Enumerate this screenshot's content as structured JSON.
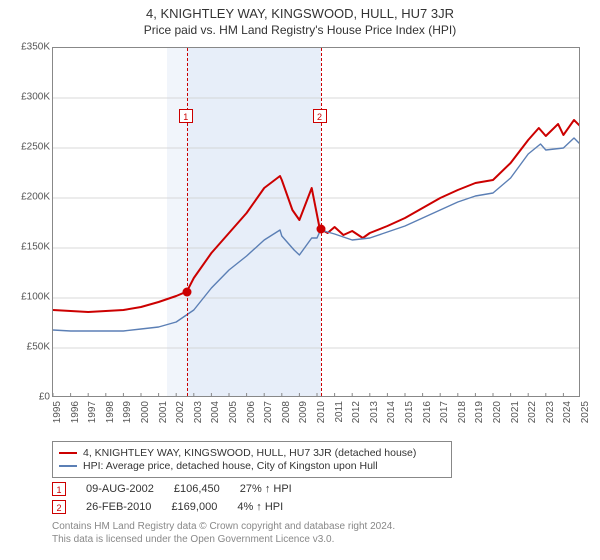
{
  "title_main": "4, KNIGHTLEY WAY, KINGSWOOD, HULL, HU7 3JR",
  "title_sub": "Price paid vs. HM Land Registry's House Price Index (HPI)",
  "chart": {
    "type": "line",
    "background_color": "#ffffff",
    "border_color": "#888888",
    "x": {
      "year_min": 1995,
      "year_max": 2025,
      "labels": [
        "1995",
        "1996",
        "1997",
        "1998",
        "1999",
        "2000",
        "2001",
        "2002",
        "2003",
        "2004",
        "2005",
        "2006",
        "2007",
        "2008",
        "2009",
        "2010",
        "2011",
        "2012",
        "2013",
        "2014",
        "2015",
        "2016",
        "2017",
        "2018",
        "2019",
        "2020",
        "2021",
        "2022",
        "2023",
        "2024",
        "2025"
      ]
    },
    "y": {
      "min": 0,
      "max": 350000,
      "step": 50000,
      "labels": [
        "£0",
        "£50K",
        "£100K",
        "£150K",
        "£200K",
        "£250K",
        "£300K",
        "£350K"
      ]
    },
    "shade_bands": [
      {
        "from_year": 2001.5,
        "to_year": 2002.6,
        "color": "#f1f5fb"
      },
      {
        "from_year": 2002.6,
        "to_year": 2010.2,
        "color": "#e7eef9"
      }
    ],
    "vlines": [
      {
        "year": 2002.6,
        "color": "#cc0000",
        "marker": "1"
      },
      {
        "year": 2010.2,
        "color": "#cc0000",
        "marker": "2"
      }
    ],
    "series": [
      {
        "name": "property_price",
        "color": "#cc0000",
        "width": 2,
        "legend": "4, KNIGHTLEY WAY, KINGSWOOD, HULL, HU7 3JR (detached house)",
        "points": [
          [
            1995,
            88000
          ],
          [
            1996,
            87000
          ],
          [
            1997,
            86000
          ],
          [
            1998,
            87000
          ],
          [
            1999,
            88000
          ],
          [
            2000,
            91000
          ],
          [
            2001,
            96000
          ],
          [
            2002,
            102000
          ],
          [
            2002.6,
            106450
          ],
          [
            2003,
            120000
          ],
          [
            2004,
            145000
          ],
          [
            2005,
            165000
          ],
          [
            2006,
            185000
          ],
          [
            2007,
            210000
          ],
          [
            2007.9,
            222000
          ],
          [
            2008,
            218000
          ],
          [
            2008.6,
            188000
          ],
          [
            2009,
            178000
          ],
          [
            2009.7,
            210000
          ],
          [
            2010.15,
            170000
          ],
          [
            2010.2,
            169000
          ],
          [
            2010.6,
            165000
          ],
          [
            2011,
            171000
          ],
          [
            2011.5,
            163000
          ],
          [
            2012,
            167000
          ],
          [
            2012.6,
            160000
          ],
          [
            2013,
            165000
          ],
          [
            2014,
            172000
          ],
          [
            2015,
            180000
          ],
          [
            2016,
            190000
          ],
          [
            2017,
            200000
          ],
          [
            2018,
            208000
          ],
          [
            2019,
            215000
          ],
          [
            2020,
            218000
          ],
          [
            2021,
            235000
          ],
          [
            2022,
            258000
          ],
          [
            2022.6,
            270000
          ],
          [
            2023,
            262000
          ],
          [
            2023.7,
            274000
          ],
          [
            2024,
            263000
          ],
          [
            2024.6,
            278000
          ],
          [
            2025,
            271000
          ]
        ]
      },
      {
        "name": "hpi",
        "color": "#5b7fb5",
        "width": 1.4,
        "legend": "HPI: Average price, detached house, City of Kingston upon Hull",
        "points": [
          [
            1995,
            68000
          ],
          [
            1996,
            67000
          ],
          [
            1997,
            67000
          ],
          [
            1998,
            67000
          ],
          [
            1999,
            67000
          ],
          [
            2000,
            69000
          ],
          [
            2001,
            71000
          ],
          [
            2002,
            76000
          ],
          [
            2003,
            88000
          ],
          [
            2004,
            110000
          ],
          [
            2005,
            128000
          ],
          [
            2006,
            142000
          ],
          [
            2007,
            158000
          ],
          [
            2007.9,
            168000
          ],
          [
            2008,
            162000
          ],
          [
            2008.7,
            148000
          ],
          [
            2009,
            143000
          ],
          [
            2009.7,
            160000
          ],
          [
            2010,
            160000
          ],
          [
            2010.2,
            168000
          ],
          [
            2011,
            164000
          ],
          [
            2012,
            158000
          ],
          [
            2013,
            160000
          ],
          [
            2014,
            166000
          ],
          [
            2015,
            172000
          ],
          [
            2016,
            180000
          ],
          [
            2017,
            188000
          ],
          [
            2018,
            196000
          ],
          [
            2019,
            202000
          ],
          [
            2020,
            205000
          ],
          [
            2021,
            220000
          ],
          [
            2022,
            244000
          ],
          [
            2022.7,
            254000
          ],
          [
            2023,
            248000
          ],
          [
            2024,
            250000
          ],
          [
            2024.6,
            260000
          ],
          [
            2025,
            253000
          ]
        ]
      }
    ],
    "sale_dots": [
      {
        "year": 2002.6,
        "price": 106450
      },
      {
        "year": 2010.2,
        "price": 169000
      }
    ]
  },
  "sales": [
    {
      "marker": "1",
      "date": "09-AUG-2002",
      "price": "£106,450",
      "delta": "27% ↑ HPI"
    },
    {
      "marker": "2",
      "date": "26-FEB-2010",
      "price": "£169,000",
      "delta": "4% ↑ HPI"
    }
  ],
  "footer_line1": "Contains HM Land Registry data © Crown copyright and database right 2024.",
  "footer_line2": "This data is licensed under the Open Government Licence v3.0.",
  "label_fontsize": 10,
  "title_fontsize": 13
}
